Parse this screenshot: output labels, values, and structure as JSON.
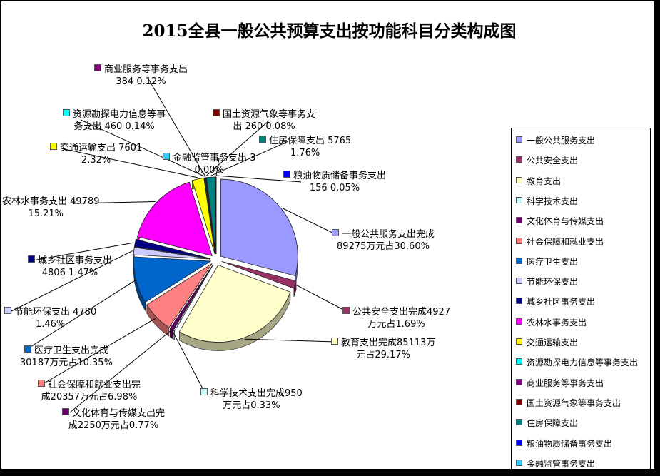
{
  "chart_data": {
    "type": "pie",
    "title": "2015全县一般公共预算支出按功能科目分类构成图",
    "slices": [
      {
        "name": "一般公共服务支出",
        "value": 89275,
        "percent": 30.6,
        "color": "#9999ff",
        "label": [
          "一般公共服务支出完成",
          "89275万元占30.60%"
        ]
      },
      {
        "name": "公共安全支出",
        "value": 4927,
        "percent": 1.69,
        "color": "#993366",
        "label": [
          "公共安全支出完成4927",
          "万元占1.69%"
        ]
      },
      {
        "name": "教育支出",
        "value": 85113,
        "percent": 29.17,
        "color": "#ffffcc",
        "label": [
          "教育支出完成85113万",
          "元占29.17%"
        ]
      },
      {
        "name": "科学技术支出",
        "value": 950,
        "percent": 0.33,
        "color": "#ccffff",
        "label": [
          "科学技术支出完成950",
          "万元占0.33%"
        ]
      },
      {
        "name": "文化体育与传媒支出",
        "value": 2250,
        "percent": 0.77,
        "color": "#660066",
        "label": [
          "文化体育与传媒支出完",
          "成2250万元占0.77%"
        ]
      },
      {
        "name": "社会保障和就业支出",
        "value": 20357,
        "percent": 6.98,
        "color": "#ff8080",
        "label": [
          "社会保障和就业支出完",
          "成20357万元占6.98%"
        ]
      },
      {
        "name": "医疗卫生支出",
        "value": 30187,
        "percent": 10.35,
        "color": "#0066cc",
        "label": [
          "医疗卫生支出完成",
          "30187万元占10.35%"
        ]
      },
      {
        "name": "节能环保支出",
        "value": 4780,
        "percent": 1.46,
        "color": "#ccccff",
        "label": [
          "节能环保支出 4780",
          "1.46%"
        ]
      },
      {
        "name": "城乡社区事务支出",
        "value": 4806,
        "percent": 1.47,
        "color": "#000080",
        "label": [
          "城乡社区事务支出",
          "4806 1.47%"
        ]
      },
      {
        "name": "农林水事务支出",
        "value": 49789,
        "percent": 15.21,
        "color": "#ff00ff",
        "label": [
          "农林水事务支出 49789",
          "15.21%"
        ]
      },
      {
        "name": "交通运输支出",
        "value": 7601,
        "percent": 2.32,
        "color": "#ffff00",
        "label": [
          "交通运输支出 7601",
          "2.32%"
        ]
      },
      {
        "name": "资源勘探电力信息等事务支出",
        "value": 460,
        "percent": 0.14,
        "color": "#00ffff",
        "label": [
          "资源勘探电力信息等事",
          "务支出 460 0.14%"
        ]
      },
      {
        "name": "商业服务等事务支出",
        "value": 384,
        "percent": 0.12,
        "color": "#800080",
        "label": [
          "商业服务等事务支出",
          "384 0.12%"
        ]
      },
      {
        "name": "国土资源气象等事务支出",
        "value": 260,
        "percent": 0.08,
        "color": "#800000",
        "label": [
          "国土资源气象等事务支",
          "出 260 0.08%"
        ]
      },
      {
        "name": "住房保障支出",
        "value": 5765,
        "percent": 1.76,
        "color": "#008080",
        "label": [
          "住房保障支出 5765",
          "1.76%"
        ]
      },
      {
        "name": "粮油物质储备事务支出",
        "value": 156,
        "percent": 0.05,
        "color": "#0000ff",
        "label": [
          "粮油物质储备事务支出",
          "156 0.05%"
        ]
      },
      {
        "name": "金融监管事务支出",
        "value": 3,
        "percent": 0.0,
        "color": "#33ccff",
        "label": [
          "金融监管事务支出 3",
          "0.00%"
        ]
      }
    ],
    "legend_position": "right"
  }
}
